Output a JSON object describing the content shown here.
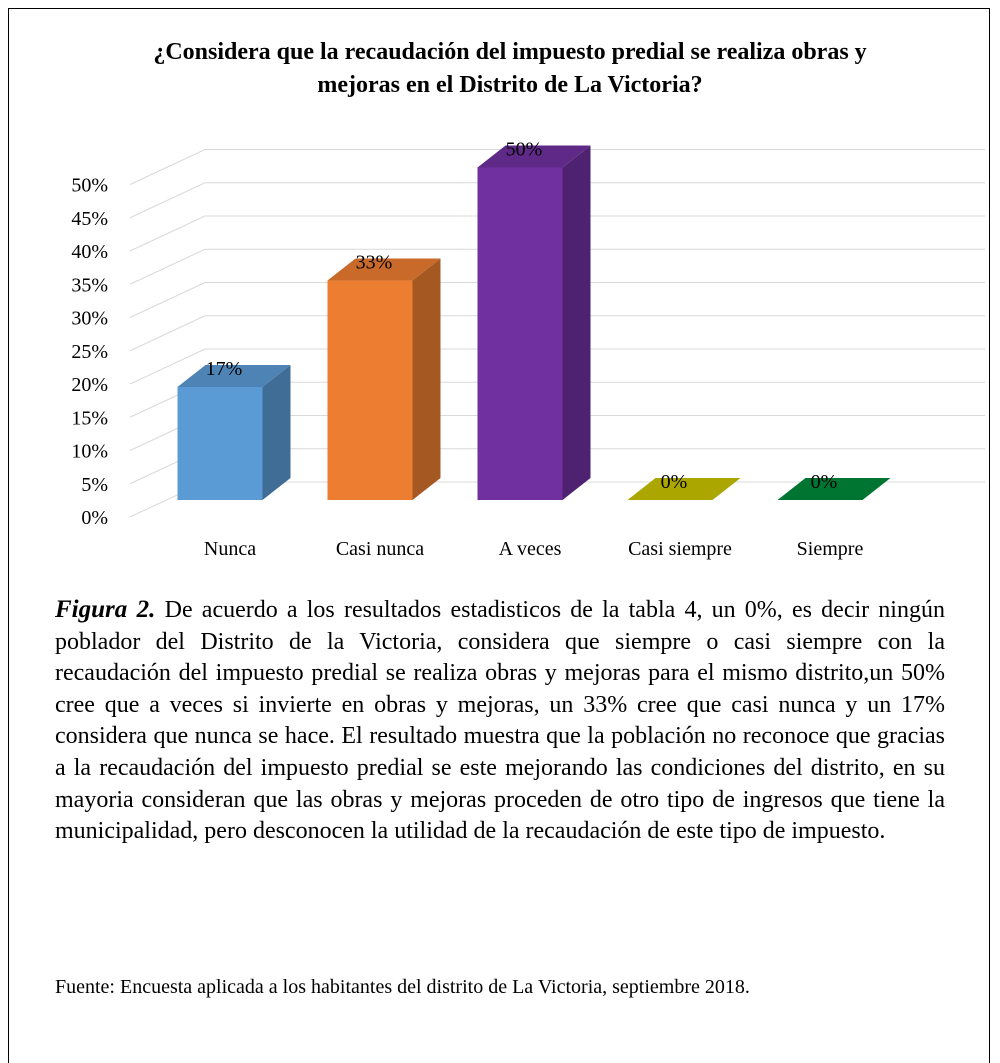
{
  "chart_data": {
    "type": "bar",
    "title": "¿Considera que la recaudación del impuesto predial se realiza obras y mejoras en el Distrito de La Victoria?",
    "categories": [
      "Nunca",
      "Casi nunca",
      "A veces",
      "Casi siempre",
      "Siempre"
    ],
    "values": [
      17,
      33,
      50,
      0,
      0
    ],
    "value_labels": [
      "17%",
      "33%",
      "50%",
      "0%",
      "0%"
    ],
    "colors": [
      "#5b9bd5",
      "#ed7d31",
      "#7030a0",
      "#c9c300",
      "#00883a"
    ],
    "ylim": [
      0,
      50
    ],
    "yticks": [
      {
        "value": 0,
        "label": "0%"
      },
      {
        "value": 5,
        "label": "5%"
      },
      {
        "value": 10,
        "label": "10%"
      },
      {
        "value": 15,
        "label": "15%"
      },
      {
        "value": 20,
        "label": "20%"
      },
      {
        "value": 25,
        "label": "25%"
      },
      {
        "value": 30,
        "label": "30%"
      },
      {
        "value": 35,
        "label": "35%"
      },
      {
        "value": 40,
        "label": "40%"
      },
      {
        "value": 45,
        "label": "45%"
      },
      {
        "value": 50,
        "label": "50%"
      }
    ],
    "grid": true
  },
  "caption": {
    "label": "Figura 2.",
    "text": " De acuerdo a los resultados estadisticos de la tabla 4, un 0%, es decir ningún poblador del Distrito de la Victoria, considera que siempre o casi siempre con la recaudación del impuesto predial se realiza obras y mejoras para el mismo distrito,un 50% cree que a veces si invierte en obras y mejoras, un 33% cree que casi nunca y un 17% considera que nunca se hace. El resultado muestra que la población no reconoce que gracias a la recaudación del impuesto predial se este mejorando las condiciones del distrito, en su mayoria consideran que las obras y mejoras proceden de otro tipo de ingresos que tiene la municipalidad, pero desconocen la utilidad de la recaudación de este tipo de impuesto."
  },
  "source": "Fuente: Encuesta aplicada a los habitantes del distrito de La Victoria, septiembre 2018."
}
